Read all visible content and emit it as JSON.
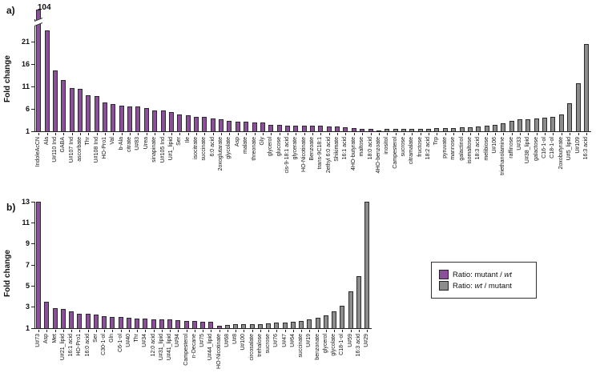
{
  "figure": {
    "panel_a_label": "a)",
    "panel_b_label": "b)"
  },
  "colors": {
    "mutant_ratio_purple": "#8b4f9b",
    "wt_ratio_gray": "#8c8c8c",
    "axis": "#222222"
  },
  "legend": {
    "items": [
      {
        "color": "purple",
        "prefix": "Ratio: mutant / ",
        "italic": "wt",
        "suffix": ""
      },
      {
        "color": "gray",
        "prefix": "Ratio: ",
        "italic": "wt",
        "suffix": " / mutant"
      }
    ]
  },
  "chart_data": [
    {
      "type": "bar",
      "panel": "a",
      "ylabel": "Fold change",
      "yticks": [
        1,
        6,
        11,
        16,
        21
      ],
      "ylim": [
        1,
        26
      ],
      "grid": false,
      "axis_break": {
        "bar_index": 0,
        "label": "104"
      },
      "group_split_index": 42,
      "group_names": [
        "mutant/wt (purple)",
        "wt/mutant (gray)"
      ],
      "categories": [
        "IndoleAcCN",
        "Ala",
        "U#110 Ind",
        "GABA",
        "U#107 Ind",
        "ascorbate",
        "Thr",
        "U#108 Ind",
        "HO-Pro1",
        "Val",
        "b-Ala",
        "citrate",
        "U#83",
        "Urea",
        "sinapinate",
        "U#105 Ind",
        "U#1_lipid",
        "Ser",
        "Ile",
        "isocitrate",
        "succinate",
        "6:0 acid",
        "2oxoglutarate",
        "glycolate",
        "Asp",
        "malate",
        "threonate",
        "Gly",
        "glycerol",
        "glucose",
        "cis-9-18:1 acid",
        "glycerate",
        "HO-Nicotinate",
        "Benzoate",
        "trans-9C18:1",
        "2ethyl 6:0 acid",
        "Shikimate",
        "16:1 acid",
        "4HO-butyrate",
        "maltose",
        "18:0 acid",
        "4HO-benzoate",
        "inositol",
        "Campesterol",
        "sucrose",
        "citramalate",
        "fructose",
        "18:2 acid",
        "Trp",
        "pyruvate",
        "mannose",
        "galactinol",
        "isomaltose",
        "18:3 acid",
        "melibiose",
        "U#106",
        "triethanolamine",
        "raffinose",
        "U#33",
        "U#38_lipid",
        "galactose",
        "C16-1-ol",
        "C18-1-ol",
        "2oxobutyrate",
        "U#5_lipid",
        "U#109",
        "16:3 acid"
      ],
      "values": [
        104,
        23.5,
        14.5,
        12.4,
        10.7,
        10.5,
        9.0,
        8.8,
        7.4,
        7.1,
        6.8,
        6.6,
        6.6,
        6.2,
        5.7,
        5.6,
        5.3,
        4.7,
        4.6,
        4.2,
        4.2,
        3.9,
        3.7,
        3.4,
        3.2,
        3.2,
        3.0,
        2.9,
        2.5,
        2.4,
        2.3,
        2.3,
        2.2,
        2.2,
        2.2,
        2.1,
        2.0,
        1.9,
        1.8,
        1.6,
        1.5,
        1.2,
        1.5,
        1.5,
        1.55,
        1.55,
        1.6,
        1.6,
        1.65,
        1.7,
        1.75,
        1.9,
        1.9,
        2.1,
        2.3,
        2.35,
        2.7,
        3.4,
        3.6,
        3.7,
        3.8,
        4.0,
        4.3,
        4.7,
        7.2,
        11.8,
        20.5
      ]
    },
    {
      "type": "bar",
      "panel": "b",
      "ylabel": "Fold change",
      "yticks": [
        1,
        3,
        5,
        7,
        9,
        11,
        13
      ],
      "ylim": [
        1,
        13
      ],
      "grid": false,
      "group_split_index": 23,
      "group_names": [
        "mutant/wt (purple)",
        "wt/mutant (gray)"
      ],
      "categories": [
        "U#73",
        "Asp",
        "Met",
        "U#21_lipid",
        "16:1 acid",
        "HO-Pro1",
        "16:0 acid",
        "Ser",
        "C30-1-ol",
        "Gln",
        "C6-1-ol",
        "U#40",
        "Thr",
        "U#34",
        "12:0 acid",
        "U#31_lipid",
        "U#41_lipid",
        "U#94",
        "Campesterol",
        "n-Decane",
        "U#75",
        "U#44_lipid",
        "HO-Nicotinate",
        "U#68",
        "U#8",
        "U#100",
        "circosalate",
        "trehalose",
        "sucrose",
        "U#76",
        "U#47",
        "U#64",
        "succinate",
        "U#19",
        "benzonate",
        "glycerol",
        "glycolate",
        "C18-1-ol",
        "U#59",
        "16:3 acid",
        "U#29"
      ],
      "values": [
        13,
        3.5,
        2.9,
        2.8,
        2.6,
        2.4,
        2.35,
        2.3,
        2.15,
        2.1,
        2.05,
        2.0,
        1.95,
        1.9,
        1.85,
        1.8,
        1.8,
        1.75,
        1.7,
        1.7,
        1.6,
        1.6,
        1.2,
        1.3,
        1.35,
        1.35,
        1.4,
        1.4,
        1.45,
        1.5,
        1.5,
        1.6,
        1.7,
        1.8,
        2.0,
        2.2,
        2.6,
        3.1,
        4.5,
        5.9,
        13
      ]
    }
  ]
}
